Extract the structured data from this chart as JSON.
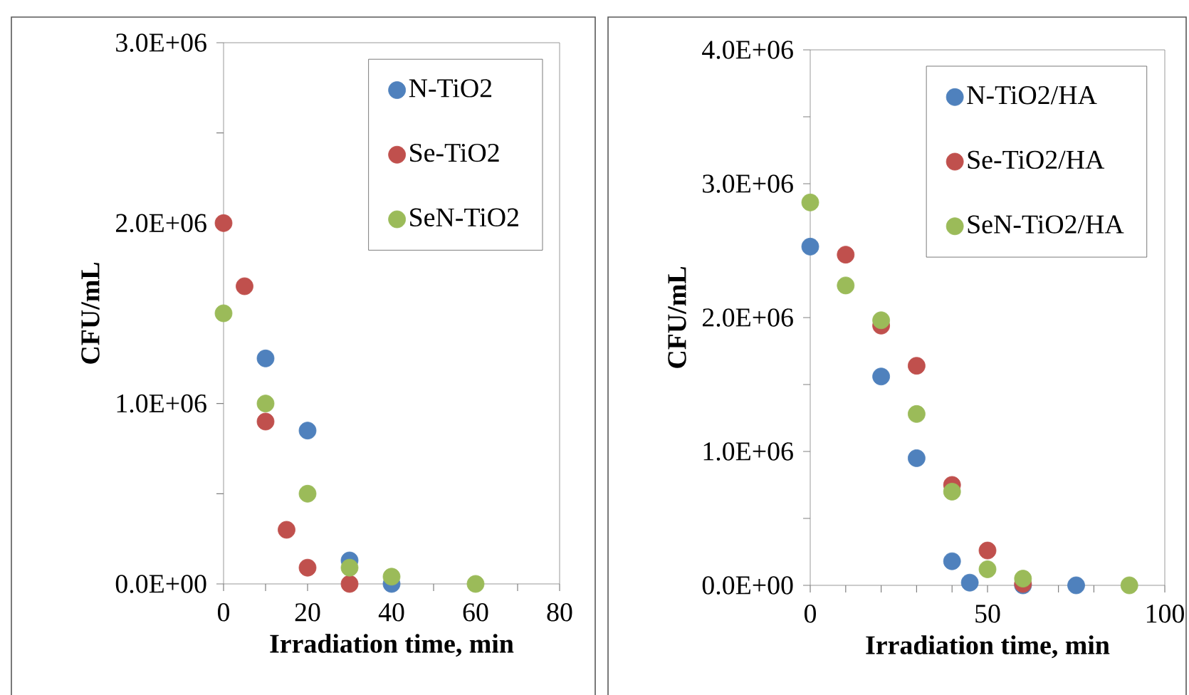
{
  "chart_data": [
    {
      "type": "scatter",
      "xlabel": "Irradiation time, min",
      "ylabel": "CFU/mL",
      "marker": "circle",
      "legend": "top right",
      "grid": false,
      "xlim": [
        0,
        80
      ],
      "ylim": [
        0,
        3000000
      ],
      "xticks": [
        0,
        {
          "value": 10,
          "label": null
        },
        20,
        {
          "value": 30,
          "label": null
        },
        40,
        {
          "value": 50,
          "label": null
        },
        60,
        {
          "value": 70,
          "label": null
        },
        80
      ],
      "yticks": [
        {
          "value": 0,
          "label": "0.0E+00"
        },
        {
          "value": 500000,
          "label": null
        },
        {
          "value": 1000000,
          "label": "1.0E+06"
        },
        {
          "value": 1500000,
          "label": null
        },
        {
          "value": 2000000,
          "label": "2.0E+06"
        },
        {
          "value": 2500000,
          "label": null
        },
        {
          "value": 3000000,
          "label": "3.0E+06"
        }
      ],
      "series": [
        {
          "name": "N-TiO2",
          "color": "#4f81bd",
          "x": [
            10,
            20,
            30,
            40
          ],
          "values": [
            1250000,
            850000,
            130000,
            0
          ]
        },
        {
          "name": "Se-TiO2",
          "color": "#c0504d",
          "x": [
            0,
            5,
            10,
            15,
            20,
            30
          ],
          "values": [
            2000000,
            1650000,
            900000,
            300000,
            90000,
            0
          ]
        },
        {
          "name": "SeN-TiO2",
          "color": "#9bbb59",
          "x": [
            0,
            10,
            20,
            30,
            40,
            60
          ],
          "values": [
            1500000,
            1000000,
            500000,
            90000,
            40000,
            0
          ]
        }
      ]
    },
    {
      "type": "scatter",
      "xlabel": "Irradiation time, min",
      "ylabel": "CFU/mL",
      "marker": "circle",
      "legend": "top right",
      "grid": false,
      "xlim": [
        0,
        100
      ],
      "ylim": [
        0,
        4000000
      ],
      "xticks": [
        0,
        {
          "value": 10,
          "label": null
        },
        {
          "value": 20,
          "label": null
        },
        {
          "value": 30,
          "label": null
        },
        {
          "value": 40,
          "label": null
        },
        50,
        {
          "value": 60,
          "label": null
        },
        {
          "value": 70,
          "label": null
        },
        {
          "value": 80,
          "label": null
        },
        {
          "value": 90,
          "label": null
        },
        100
      ],
      "yticks": [
        {
          "value": 0,
          "label": "0.0E+00"
        },
        {
          "value": 500000,
          "label": null
        },
        {
          "value": 1000000,
          "label": "1.0E+06"
        },
        {
          "value": 1500000,
          "label": null
        },
        {
          "value": 2000000,
          "label": "2.0E+06"
        },
        {
          "value": 2500000,
          "label": null
        },
        {
          "value": 3000000,
          "label": "3.0E+06"
        },
        {
          "value": 3500000,
          "label": null
        },
        {
          "value": 4000000,
          "label": "4.0E+06"
        }
      ],
      "series": [
        {
          "name": "N-TiO2/HA",
          "color": "#4f81bd",
          "x": [
            0,
            20,
            30,
            40,
            45,
            60,
            75
          ],
          "values": [
            2530000,
            1560000,
            950000,
            180000,
            20000,
            0,
            0
          ]
        },
        {
          "name": "Se-TiO2/HA",
          "color": "#c0504d",
          "x": [
            10,
            20,
            30,
            40,
            50,
            60
          ],
          "values": [
            2470000,
            1940000,
            1640000,
            750000,
            260000,
            10000
          ]
        },
        {
          "name": "SeN-TiO2/HA",
          "color": "#9bbb59",
          "x": [
            0,
            10,
            20,
            30,
            40,
            50,
            60,
            90
          ],
          "values": [
            2860000,
            2240000,
            1980000,
            1280000,
            700000,
            120000,
            50000,
            0
          ]
        }
      ]
    }
  ]
}
